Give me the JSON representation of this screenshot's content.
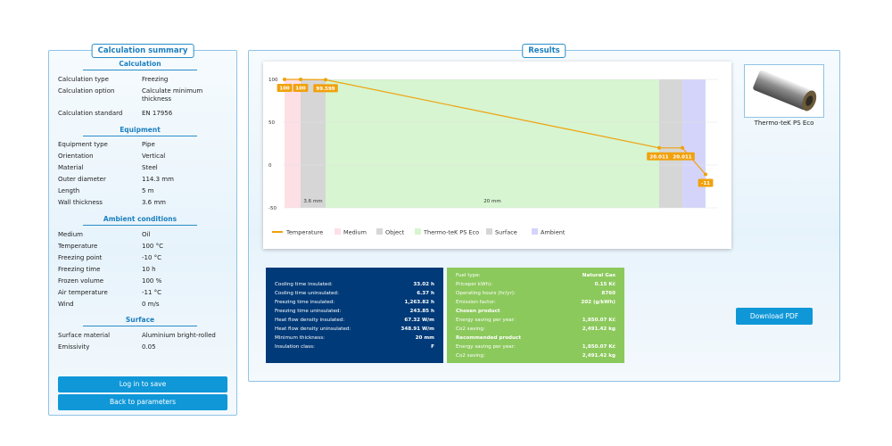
{
  "summary": {
    "title": "Calculation summary",
    "sections": [
      {
        "heading": "Calculation",
        "rows": [
          {
            "k": "Calculation type",
            "v": "Freezing"
          },
          {
            "k": "Calculation option",
            "v": "Calculate minimum thickness"
          },
          {
            "k": "Calculation standard",
            "v": "EN 17956"
          }
        ]
      },
      {
        "heading": "Equipment",
        "rows": [
          {
            "k": "Equipment type",
            "v": "Pipe"
          },
          {
            "k": "Orientation",
            "v": "Vertical"
          },
          {
            "k": "Material",
            "v": "Steel"
          },
          {
            "k": "Outer diameter",
            "v": "114.3 mm"
          },
          {
            "k": "Length",
            "v": "5 m"
          },
          {
            "k": "Wall thickness",
            "v": "3.6 mm"
          }
        ]
      },
      {
        "heading": "Ambient conditions",
        "rows": [
          {
            "k": "Medium",
            "v": "Oil"
          },
          {
            "k": "Temperature",
            "v": "100 °C"
          },
          {
            "k": "Freezing point",
            "v": "-10 °C"
          },
          {
            "k": "Freezing time",
            "v": "10 h"
          },
          {
            "k": "Frozen volume",
            "v": "100 %"
          },
          {
            "k": "Air temperature",
            "v": "-11 °C"
          },
          {
            "k": "Wind",
            "v": "0 m/s"
          }
        ]
      },
      {
        "heading": "Surface",
        "rows": [
          {
            "k": "Surface material",
            "v": "Aluminium bright-rolled"
          },
          {
            "k": "Emissivity",
            "v": "0.05"
          }
        ]
      }
    ],
    "login_button": "Log in to save",
    "back_button": "Back to parameters"
  },
  "results": {
    "title": "Results",
    "product_name": "Thermo-teK PS Eco",
    "download_button": "Download PDF",
    "blue_table": [
      {
        "l": "Cooling time insulated:",
        "v": "33.02 h"
      },
      {
        "l": "Cooling time uninsulated:",
        "v": "6.37 h"
      },
      {
        "l": "Freezing time insulated:",
        "v": "1,263.82 h"
      },
      {
        "l": "Freezing time uninsulated:",
        "v": "243.85 h"
      },
      {
        "l": "Heat flow density insulated:",
        "v": "67.32 W/m"
      },
      {
        "l": "Heat flow density uninsulated:",
        "v": "348.91 W/m"
      },
      {
        "l": "Minimum thickness:",
        "v": "20 mm"
      },
      {
        "l": "Insulation class:",
        "v": "F"
      }
    ],
    "green_table": [
      {
        "l": "Fuel type:",
        "v": "Natural Gas"
      },
      {
        "l": "Priceper kWh):",
        "v": "0.15 Kč"
      },
      {
        "l": "Operating hours (hr/yr):",
        "v": "8760"
      },
      {
        "l": "Emission factor:",
        "v": "202 (g/kWh)"
      },
      {
        "l": "Chosen product",
        "v": "",
        "h": true
      },
      {
        "l": "Energy saving per year:",
        "v": "1,850.07 Kč"
      },
      {
        "l": "Co2 saving:",
        "v": "2,491.42 kg"
      },
      {
        "l": "Recommended product",
        "v": "",
        "h": true
      },
      {
        "l": "Energy saving per year:",
        "v": "1,850.07 Kč"
      },
      {
        "l": "Co2 saving:",
        "v": "2,491.42 kg"
      }
    ]
  },
  "chart_data": {
    "type": "line",
    "ylim": [
      -50,
      100
    ],
    "yticks": [
      100,
      50,
      0,
      -50
    ],
    "x": [
      0,
      1,
      2,
      3,
      4,
      5
    ],
    "series": [
      {
        "name": "Temperature",
        "values": [
          100,
          100,
          99.599,
          20.011,
          20.011,
          -11
        ],
        "labels": [
          "100",
          "100",
          "99.599",
          "20.011",
          "20.011",
          "-11"
        ],
        "color": "#f0a10c"
      }
    ],
    "regions": [
      {
        "name": "Medium",
        "color": "#fde0e6"
      },
      {
        "name": "Object",
        "color": "#d6d6d6",
        "label": "3.6 mm"
      },
      {
        "name": "Thermo-teK PS Eco",
        "color": "#d6f5d0",
        "label": "20 mm"
      },
      {
        "name": "Surface",
        "color": "#d6d6d6"
      },
      {
        "name": "Ambient",
        "color": "#d4d4fb"
      }
    ],
    "legend": [
      "Temperature",
      "Medium",
      "Object",
      "Thermo-teK PS Eco",
      "Surface",
      "Ambient"
    ],
    "legend_position": "bottom-left"
  }
}
